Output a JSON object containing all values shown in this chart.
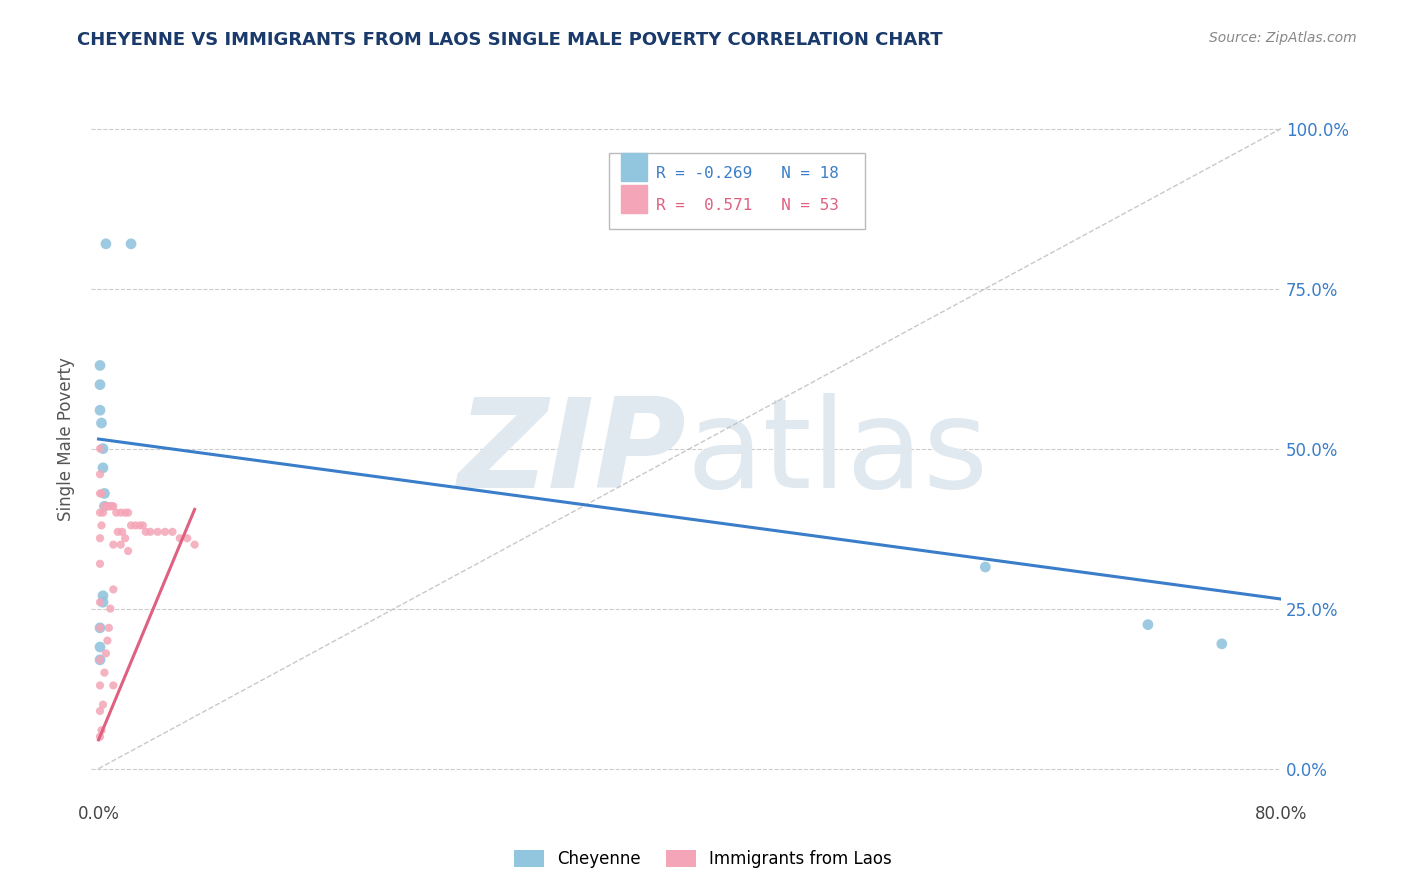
{
  "title": "CHEYENNE VS IMMIGRANTS FROM LAOS SINGLE MALE POVERTY CORRELATION CHART",
  "source": "Source: ZipAtlas.com",
  "ylabel": "Single Male Poverty",
  "yticks_labels": [
    "0.0%",
    "25.0%",
    "50.0%",
    "75.0%",
    "100.0%"
  ],
  "ytick_values": [
    0.0,
    0.25,
    0.5,
    0.75,
    1.0
  ],
  "xlim": [
    -0.005,
    0.8
  ],
  "ylim": [
    -0.05,
    1.08
  ],
  "cheyenne_R": -0.269,
  "cheyenne_N": 18,
  "laos_R": 0.571,
  "laos_N": 53,
  "cheyenne_color": "#92C5DE",
  "laos_color": "#F4A6B8",
  "cheyenne_line_color": "#3A7DC9",
  "laos_line_color": "#E06080",
  "watermark_zip": "ZIP",
  "watermark_atlas": "atlas",
  "watermark_color": "#E0E8F0",
  "legend_R1": "R = -0.269",
  "legend_N1": "N = 18",
  "legend_R2": "R =  0.571",
  "legend_N2": "N = 53",
  "cheyenne_label": "Cheyenne",
  "laos_label": "Immigrants from Laos",
  "cheyenne_x": [
    0.005,
    0.022,
    0.001,
    0.001,
    0.001,
    0.002,
    0.003,
    0.003,
    0.004,
    0.004,
    0.003,
    0.003,
    0.001,
    0.001,
    0.001,
    0.6,
    0.71,
    0.76
  ],
  "cheyenne_y": [
    0.82,
    0.82,
    0.63,
    0.6,
    0.56,
    0.54,
    0.5,
    0.47,
    0.43,
    0.41,
    0.27,
    0.26,
    0.22,
    0.19,
    0.17,
    0.315,
    0.225,
    0.195
  ],
  "laos_x": [
    0.001,
    0.001,
    0.001,
    0.001,
    0.001,
    0.001,
    0.001,
    0.001,
    0.001,
    0.001,
    0.001,
    0.001,
    0.002,
    0.002,
    0.002,
    0.003,
    0.003,
    0.004,
    0.004,
    0.005,
    0.005,
    0.006,
    0.006,
    0.007,
    0.007,
    0.008,
    0.008,
    0.009,
    0.01,
    0.01,
    0.01,
    0.01,
    0.012,
    0.013,
    0.015,
    0.015,
    0.016,
    0.018,
    0.018,
    0.02,
    0.02,
    0.022,
    0.025,
    0.028,
    0.03,
    0.032,
    0.035,
    0.04,
    0.045,
    0.05,
    0.055,
    0.06,
    0.065
  ],
  "laos_y": [
    0.5,
    0.46,
    0.43,
    0.4,
    0.36,
    0.32,
    0.26,
    0.22,
    0.17,
    0.13,
    0.09,
    0.05,
    0.43,
    0.38,
    0.06,
    0.4,
    0.1,
    0.41,
    0.15,
    0.41,
    0.18,
    0.41,
    0.2,
    0.41,
    0.22,
    0.41,
    0.25,
    0.41,
    0.41,
    0.35,
    0.28,
    0.13,
    0.4,
    0.37,
    0.4,
    0.35,
    0.37,
    0.4,
    0.36,
    0.4,
    0.34,
    0.38,
    0.38,
    0.38,
    0.38,
    0.37,
    0.37,
    0.37,
    0.37,
    0.37,
    0.36,
    0.36,
    0.35
  ],
  "chey_line_x0": 0.0,
  "chey_line_x1": 0.8,
  "chey_line_y0": 0.515,
  "chey_line_y1": 0.265,
  "laos_line_x0": 0.0,
  "laos_line_x1": 0.065,
  "laos_line_y0": 0.045,
  "laos_line_y1": 0.405,
  "diag_line_x0": 0.0,
  "diag_line_x1": 0.8,
  "diag_line_y0": 0.0,
  "diag_line_y1": 1.0
}
